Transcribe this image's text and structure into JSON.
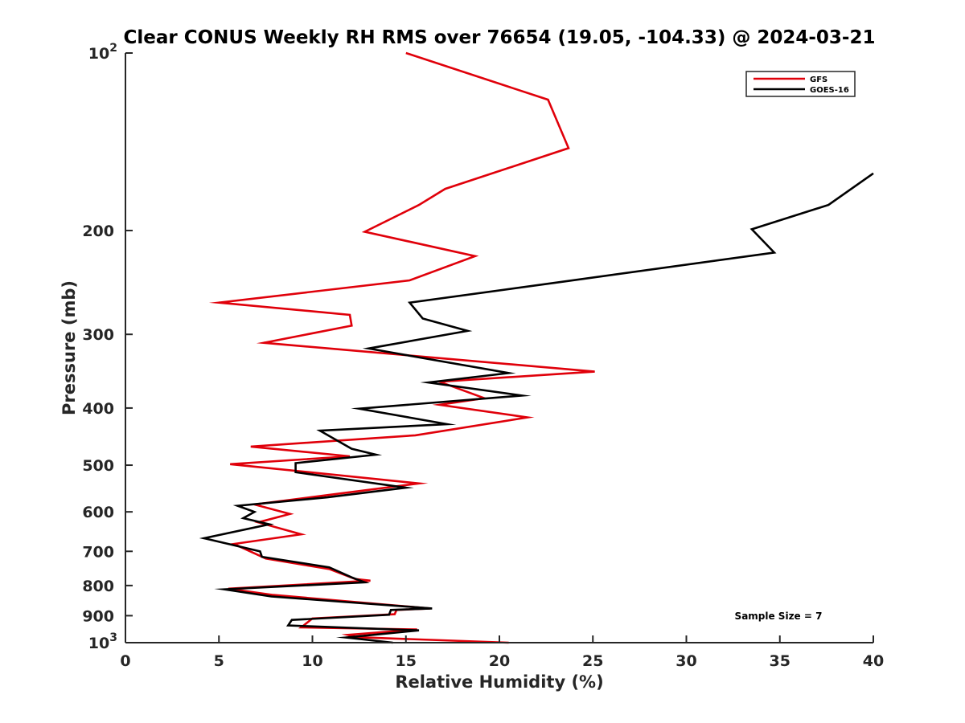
{
  "chart_data": {
    "type": "line",
    "title": "Clear CONUS Weekly RH RMS over 76654 (19.05, -104.33) @ 2024-03-21",
    "xlabel": "Relative Humidity (%)",
    "ylabel": "Pressure (mb)",
    "xlim": [
      0,
      40
    ],
    "ylim": [
      100,
      1000
    ],
    "yscale": "log",
    "y_reversed": true,
    "x_ticks": [
      0,
      5,
      10,
      15,
      20,
      25,
      30,
      35,
      40
    ],
    "x_tick_labels": [
      "0",
      "5",
      "10",
      "15",
      "20",
      "25",
      "30",
      "35",
      "40"
    ],
    "y_ticks": [
      {
        "value": 100,
        "base": "10",
        "exp": "2"
      },
      {
        "value": 200,
        "label": "200"
      },
      {
        "value": 300,
        "label": "300"
      },
      {
        "value": 400,
        "label": "400"
      },
      {
        "value": 500,
        "label": "500"
      },
      {
        "value": 600,
        "label": "600"
      },
      {
        "value": 700,
        "label": "700"
      },
      {
        "value": 800,
        "label": "800"
      },
      {
        "value": 900,
        "label": "900"
      },
      {
        "value": 1000,
        "base": "10",
        "exp": "3"
      }
    ],
    "legend_position": "top-right",
    "annotation": "Sample Size = 7",
    "series": [
      {
        "name": "GFS",
        "color": "#e0000a",
        "points": [
          [
            15.0,
            100
          ],
          [
            22.6,
            120
          ],
          [
            23.7,
            145
          ],
          [
            17.1,
            170
          ],
          [
            15.7,
            181
          ],
          [
            12.8,
            201
          ],
          [
            18.7,
            221
          ],
          [
            15.2,
            243
          ],
          [
            5.0,
            265
          ],
          [
            12.0,
            278
          ],
          [
            12.1,
            290
          ],
          [
            7.4,
            310
          ],
          [
            25.1,
            347
          ],
          [
            16.8,
            361
          ],
          [
            19.2,
            385
          ],
          [
            16.8,
            395
          ],
          [
            21.5,
            415
          ],
          [
            15.5,
            445
          ],
          [
            6.7,
            465
          ],
          [
            12.0,
            483
          ],
          [
            5.6,
            498
          ],
          [
            15.7,
            537
          ],
          [
            10.8,
            562
          ],
          [
            6.9,
            583
          ],
          [
            8.8,
            605
          ],
          [
            7.1,
            625
          ],
          [
            9.4,
            655
          ],
          [
            5.8,
            680
          ],
          [
            7.3,
            715
          ],
          [
            7.5,
            720
          ],
          [
            10.9,
            750
          ],
          [
            12.3,
            780
          ],
          [
            13.1,
            785
          ],
          [
            5.5,
            810
          ],
          [
            7.9,
            830
          ],
          [
            16.3,
            875
          ],
          [
            14.5,
            880
          ],
          [
            14.4,
            895
          ],
          [
            10.0,
            910
          ],
          [
            9.4,
            942
          ],
          [
            15.6,
            950
          ],
          [
            11.9,
            970
          ],
          [
            12.4,
            979
          ],
          [
            20.5,
            1000
          ]
        ]
      },
      {
        "name": "GOES-16",
        "color": "#000000",
        "points": [
          [
            40.0,
            160
          ],
          [
            37.6,
            181
          ],
          [
            33.5,
            199
          ],
          [
            34.7,
            218
          ],
          [
            23.5,
            244
          ],
          [
            15.2,
            265
          ],
          [
            15.9,
            282
          ],
          [
            18.3,
            296
          ],
          [
            13.0,
            317
          ],
          [
            20.5,
            349
          ],
          [
            16.2,
            362
          ],
          [
            21.2,
            381
          ],
          [
            12.5,
            401
          ],
          [
            17.2,
            426
          ],
          [
            10.4,
            437
          ],
          [
            12.1,
            469
          ],
          [
            13.4,
            480
          ],
          [
            9.1,
            496
          ],
          [
            9.1,
            514
          ],
          [
            15.0,
            546
          ],
          [
            10.8,
            567
          ],
          [
            6.0,
            586
          ],
          [
            6.9,
            600
          ],
          [
            6.3,
            615
          ],
          [
            7.7,
            630
          ],
          [
            4.2,
            665
          ],
          [
            7.2,
            700
          ],
          [
            7.3,
            715
          ],
          [
            10.9,
            745
          ],
          [
            12.1,
            775
          ],
          [
            12.8,
            790
          ],
          [
            5.3,
            812
          ],
          [
            7.8,
            835
          ],
          [
            16.4,
            875
          ],
          [
            14.2,
            880
          ],
          [
            14.1,
            897
          ],
          [
            8.9,
            915
          ],
          [
            8.7,
            935
          ],
          [
            15.7,
            953
          ],
          [
            11.8,
            980
          ],
          [
            14.3,
            1000
          ]
        ]
      }
    ]
  }
}
